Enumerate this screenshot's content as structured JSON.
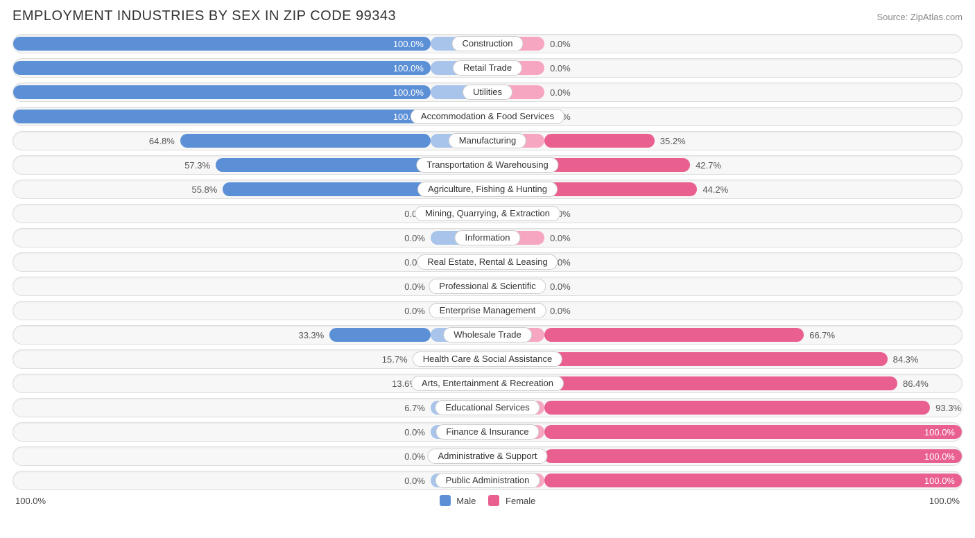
{
  "title": "EMPLOYMENT INDUSTRIES BY SEX IN ZIP CODE 99343",
  "source": "Source: ZipAtlas.com",
  "chart": {
    "type": "diverging-bar",
    "axis_left": "100.0%",
    "axis_right": "100.0%",
    "legend": {
      "male": "Male",
      "female": "Female"
    },
    "colors": {
      "male_strong": "#5b8fd6",
      "male_pale": "#a9c4eb",
      "female_strong": "#e95f8f",
      "female_pale": "#f7a6c1",
      "row_bg": "#f7f7f7",
      "row_border": "#dddddd",
      "text": "#555555",
      "text_inside": "#ffffff"
    },
    "min_knob_pct": 12,
    "rows": [
      {
        "label": "Construction",
        "male": 100.0,
        "female": 0.0
      },
      {
        "label": "Retail Trade",
        "male": 100.0,
        "female": 0.0
      },
      {
        "label": "Utilities",
        "male": 100.0,
        "female": 0.0
      },
      {
        "label": "Accommodation & Food Services",
        "male": 100.0,
        "female": 0.0
      },
      {
        "label": "Manufacturing",
        "male": 64.8,
        "female": 35.2
      },
      {
        "label": "Transportation & Warehousing",
        "male": 57.3,
        "female": 42.7
      },
      {
        "label": "Agriculture, Fishing & Hunting",
        "male": 55.8,
        "female": 44.2
      },
      {
        "label": "Mining, Quarrying, & Extraction",
        "male": 0.0,
        "female": 0.0
      },
      {
        "label": "Information",
        "male": 0.0,
        "female": 0.0
      },
      {
        "label": "Real Estate, Rental & Leasing",
        "male": 0.0,
        "female": 0.0
      },
      {
        "label": "Professional & Scientific",
        "male": 0.0,
        "female": 0.0
      },
      {
        "label": "Enterprise Management",
        "male": 0.0,
        "female": 0.0
      },
      {
        "label": "Wholesale Trade",
        "male": 33.3,
        "female": 66.7
      },
      {
        "label": "Health Care & Social Assistance",
        "male": 15.7,
        "female": 84.3
      },
      {
        "label": "Arts, Entertainment & Recreation",
        "male": 13.6,
        "female": 86.4
      },
      {
        "label": "Educational Services",
        "male": 6.7,
        "female": 93.3
      },
      {
        "label": "Finance & Insurance",
        "male": 0.0,
        "female": 100.0
      },
      {
        "label": "Administrative & Support",
        "male": 0.0,
        "female": 100.0
      },
      {
        "label": "Public Administration",
        "male": 0.0,
        "female": 100.0
      }
    ]
  }
}
